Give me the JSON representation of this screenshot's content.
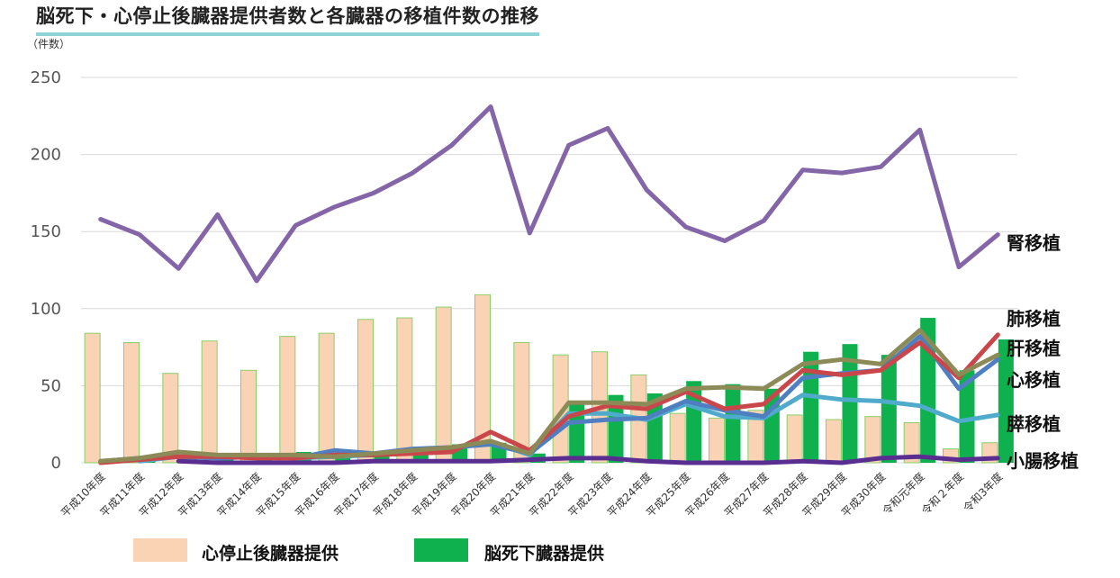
{
  "title": "脳死下・心停止後臓器提供者数と各臓器の移植件数の推移",
  "unit_label": "（件数）",
  "colors": {
    "dcd_fill": "#f9d3b3",
    "dcd_stroke": "#8ccf6a",
    "dbd_fill": "#0fb14f",
    "kidney": "#8466a8",
    "lung": "#c9464a",
    "liver": "#8c8a56",
    "heart": "#4f7fc0",
    "pancreas": "#4faacb",
    "intestine": "#5a2d91"
  },
  "legend": [
    {
      "name": "心停止後臓器提供",
      "color": "#f9d3b3"
    },
    {
      "name": "脳死下臓器提供",
      "color": "#0fb14f"
    }
  ],
  "chart_data": {
    "type": "bar+line",
    "ylim": [
      0,
      250
    ],
    "yticks": [
      0,
      50,
      100,
      150,
      200,
      250
    ],
    "categories": [
      "平成10年度",
      "平成11年度",
      "平成12年度",
      "平成13年度",
      "平成14年度",
      "平成15年度",
      "平成16年度",
      "平成17年度",
      "平成18年度",
      "平成19年度",
      "平成20年度",
      "平成21年度",
      "平成22年度",
      "平成23年度",
      "平成24年度",
      "平成25年度",
      "平成26年度",
      "平成27年度",
      "平成28年度",
      "平成29年度",
      "平成30年度",
      "令和元年度",
      "令和２年度",
      "令和3年度"
    ],
    "bars": [
      {
        "name": "心停止後臓器提供",
        "values": [
          84,
          78,
          58,
          79,
          60,
          82,
          84,
          93,
          94,
          101,
          109,
          78,
          70,
          72,
          57,
          32,
          29,
          34,
          31,
          28,
          30,
          26,
          9,
          13
        ]
      },
      {
        "name": "脳死下臓器提供",
        "values": [
          1,
          2,
          4,
          5,
          5,
          7,
          5,
          7,
          10,
          12,
          13,
          6,
          39,
          44,
          45,
          53,
          51,
          48,
          72,
          77,
          70,
          94,
          60,
          80
        ]
      }
    ],
    "series": [
      {
        "name": "腎移植",
        "color": "#8466a8",
        "values": [
          158,
          148,
          126,
          161,
          118,
          154,
          166,
          175,
          188,
          206,
          231,
          149,
          206,
          217,
          177,
          153,
          144,
          157,
          190,
          188,
          192,
          216,
          127,
          148
        ]
      },
      {
        "name": "肺移植",
        "color": "#c9464a",
        "values": [
          0,
          2,
          4,
          4,
          3,
          3,
          5,
          5,
          6,
          7,
          20,
          8,
          30,
          37,
          35,
          46,
          35,
          38,
          60,
          57,
          60,
          78,
          55,
          83
        ]
      },
      {
        "name": "肝移植",
        "color": "#8c8a56",
        "values": [
          1,
          3,
          7,
          5,
          5,
          5,
          4,
          6,
          8,
          10,
          14,
          6,
          39,
          39,
          38,
          48,
          49,
          48,
          64,
          67,
          64,
          86,
          57,
          70
        ]
      },
      {
        "name": "心移植",
        "color": "#4f7fc0",
        "values": [
          1,
          3,
          4,
          3,
          4,
          3,
          8,
          6,
          9,
          10,
          12,
          6,
          26,
          28,
          29,
          40,
          34,
          30,
          55,
          58,
          60,
          82,
          48,
          67
        ]
      },
      {
        "name": "膵移植",
        "color": "#4faacb",
        "values": [
          null,
          1,
          4,
          3,
          4,
          3,
          4,
          5,
          8,
          9,
          14,
          5,
          32,
          32,
          28,
          38,
          30,
          29,
          44,
          41,
          40,
          37,
          27,
          31
        ]
      },
      {
        "name": "小腸移植",
        "color": "#5a2d91",
        "values": [
          null,
          null,
          1,
          0,
          0,
          0,
          0,
          1,
          1,
          1,
          1,
          2,
          3,
          3,
          1,
          0,
          0,
          0,
          1,
          0,
          3,
          4,
          2,
          3
        ]
      }
    ]
  }
}
